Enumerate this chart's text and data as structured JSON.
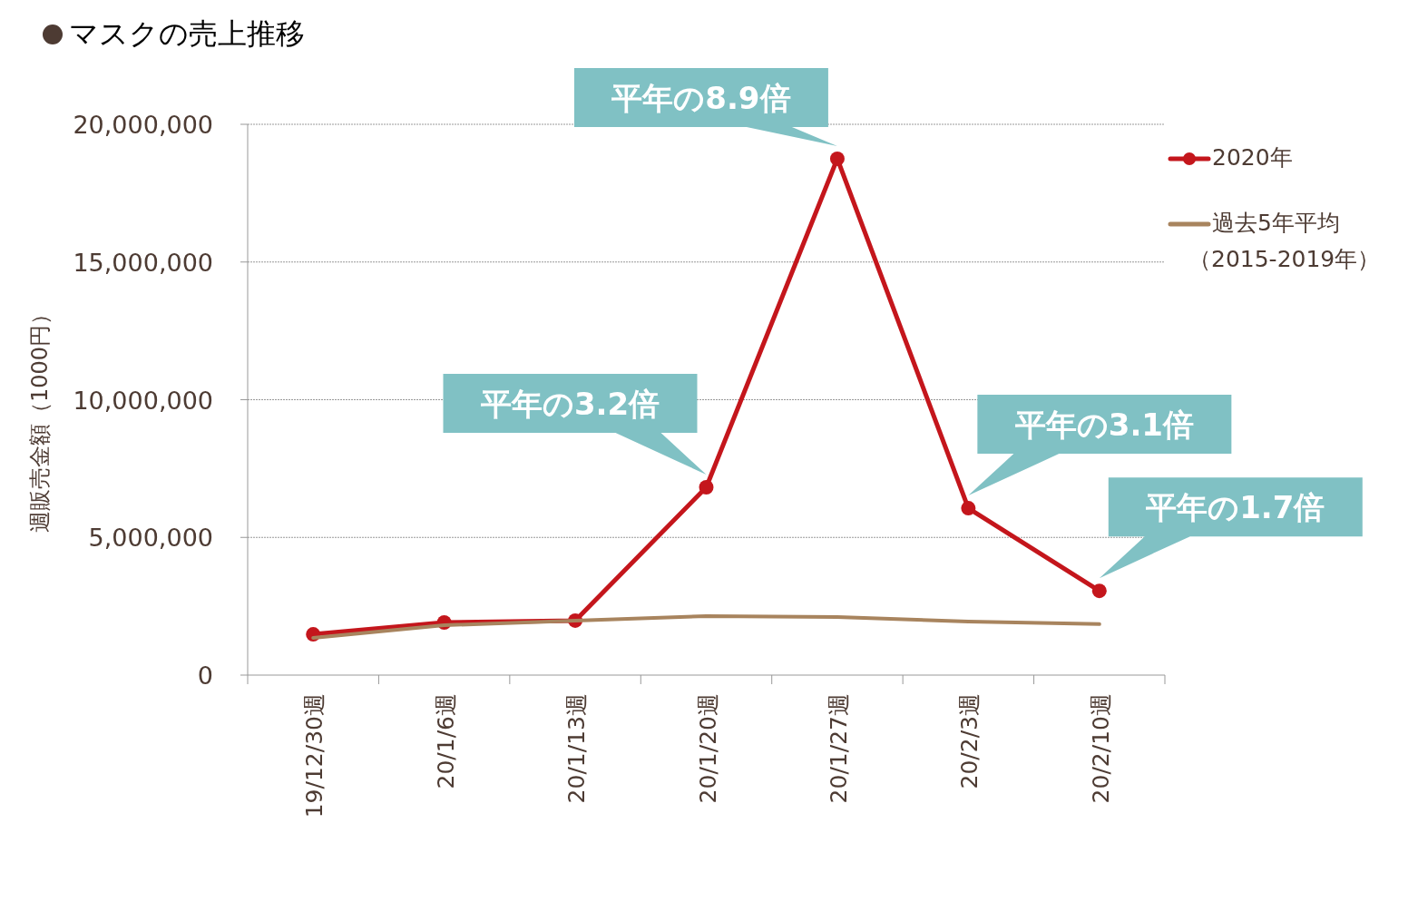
{
  "chart_data": {
    "type": "line",
    "title": "マスクの売上推移",
    "ylabel": "週販売金額（1000円）",
    "categories": [
      "19/12/30週",
      "20/1/6週",
      "20/1/13週",
      "20/1/20週",
      "20/1/27週",
      "20/2/3週",
      "20/2/10週"
    ],
    "series": [
      {
        "name": "2020年",
        "color": "#c4161c",
        "marker": "circle",
        "values": [
          1480000,
          1910000,
          1980000,
          6820000,
          18750000,
          6060000,
          3060000
        ]
      },
      {
        "name": "過去5年平均（2015-2019年）",
        "color": "#a8845e",
        "marker": "none",
        "values": [
          1350000,
          1810000,
          1980000,
          2140000,
          2110000,
          1940000,
          1850000
        ]
      }
    ],
    "ylim": [
      0,
      20000000
    ],
    "yticks": [
      {
        "value": 0,
        "label": "0"
      },
      {
        "value": 5000000,
        "label": "5,000,000"
      },
      {
        "value": 10000000,
        "label": "10,000,000"
      },
      {
        "value": 15000000,
        "label": "15,000,000"
      },
      {
        "value": 20000000,
        "label": "20,000,000"
      }
    ],
    "grid": "y",
    "legend": "right",
    "line_style": "solid",
    "annotations": [
      {
        "text": "平年の3.2倍",
        "x": "20/1/20週",
        "y": 6820000
      },
      {
        "text": "平年の8.9倍",
        "x": "20/1/27週",
        "y": 18750000
      },
      {
        "text": "平年の3.1倍",
        "x": "20/2/3週",
        "y": 6060000
      },
      {
        "text": "平年の1.7倍",
        "x": "20/2/10週",
        "y": 3060000
      }
    ]
  }
}
